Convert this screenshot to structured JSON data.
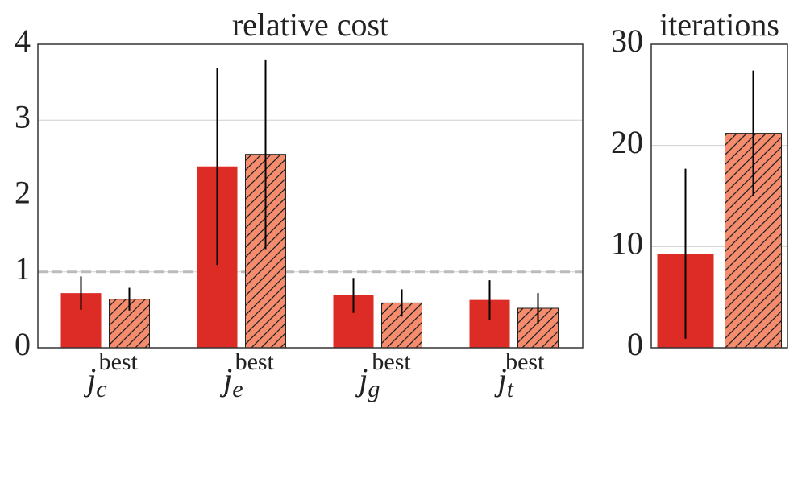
{
  "chart_data": [
    {
      "type": "bar",
      "title": "relative cost",
      "categories": [
        {
          "base": "j",
          "sub": "c",
          "sup": "best"
        },
        {
          "base": "j",
          "sub": "e",
          "sup": "best"
        },
        {
          "base": "j",
          "sub": "g",
          "sup": "best"
        },
        {
          "base": "j",
          "sub": "t",
          "sup": "best"
        }
      ],
      "series": [
        {
          "color": "#dc2c25",
          "hatch": false,
          "values": [
            0.72,
            2.39,
            0.69,
            0.63
          ],
          "errors": [
            0.22,
            1.3,
            0.23,
            0.26
          ]
        },
        {
          "color": "#f58c6e",
          "hatch": true,
          "values": [
            0.64,
            2.55,
            0.59,
            0.52
          ],
          "errors": [
            0.15,
            1.25,
            0.18,
            0.2
          ]
        }
      ],
      "ylim": [
        0,
        4
      ],
      "yticks": [
        0,
        1,
        2,
        3,
        4
      ],
      "grid": true,
      "hline": {
        "value": 1,
        "color": "#bbbbbb",
        "style": "dashed"
      }
    },
    {
      "type": "bar",
      "title": "iterations",
      "series": [
        {
          "color": "#dc2c25",
          "hatch": false,
          "values": [
            9.3
          ],
          "errors": [
            8.4
          ]
        },
        {
          "color": "#f58c6e",
          "hatch": true,
          "values": [
            21.2
          ],
          "errors": [
            6.2
          ]
        }
      ],
      "ylim": [
        0,
        30
      ],
      "yticks": [
        0,
        10,
        20,
        30
      ],
      "grid": true
    }
  ]
}
